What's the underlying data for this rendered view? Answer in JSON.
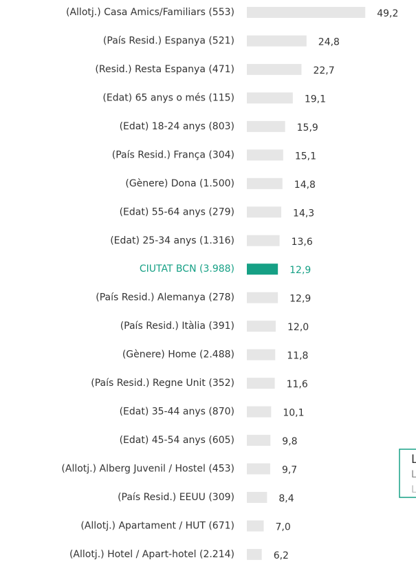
{
  "chart_data": {
    "type": "barh",
    "categories": [
      "(Allotj.) Casa Amics/Familiars (553)",
      "(País Resid.) Espanya (521)",
      "(Resid.) Resta Espanya (471)",
      "(Edat) 65 anys o més (115)",
      "(Edat) 18-24 anys (803)",
      "(País Resid.) França (304)",
      "(Gènere) Dona (1.500)",
      "(Edat) 55-64 anys (279)",
      "(Edat) 25-34 anys  (1.316)",
      "CIUTAT BCN (3.988)",
      "(País Resid.) Alemanya (278)",
      "(País Resid.) Itàlia (391)",
      "(Gènere) Home (2.488)",
      "(País Resid.) Regne Unit (352)",
      "(Edat) 35-44 anys (870)",
      "(Edat) 45-54 anys (605)",
      "(Allotj.) Alberg Juvenil / Hostel  (453)",
      "(País Resid.) EEUU (309)",
      "(Allotj.) Apartament / HUT (671)",
      "(Allotj.) Hotel / Apart-hotel (2.214)"
    ],
    "values": [
      49.2,
      24.8,
      22.7,
      19.1,
      15.9,
      15.1,
      14.8,
      14.3,
      13.6,
      12.9,
      12.9,
      12.0,
      11.8,
      11.6,
      10.1,
      9.8,
      9.7,
      8.4,
      7.0,
      6.2
    ],
    "value_labels": [
      "49,2",
      "24,8",
      "22,7",
      "19,1",
      "15,9",
      "15,1",
      "14,8",
      "14,3",
      "13,6",
      "12,9",
      "12,9",
      "12,0",
      "11,8",
      "11,6",
      "10,1",
      "9,8",
      "9,7",
      "8,4",
      "7,0",
      "6,2"
    ],
    "color": "#e6e6e6",
    "colors": [
      "#e6e6e6",
      "#e6e6e6",
      "#e6e6e6",
      "#e6e6e6",
      "#e6e6e6",
      "#e6e6e6",
      "#e6e6e6",
      "#e6e6e6",
      "#e6e6e6",
      "#16a085",
      "#e6e6e6",
      "#e6e6e6",
      "#e6e6e6",
      "#e6e6e6",
      "#e6e6e6",
      "#e6e6e6",
      "#e6e6e6",
      "#e6e6e6",
      "#e6e6e6",
      "#e6e6e6"
    ],
    "annotations": [
      "L",
      "L",
      "L"
    ]
  }
}
